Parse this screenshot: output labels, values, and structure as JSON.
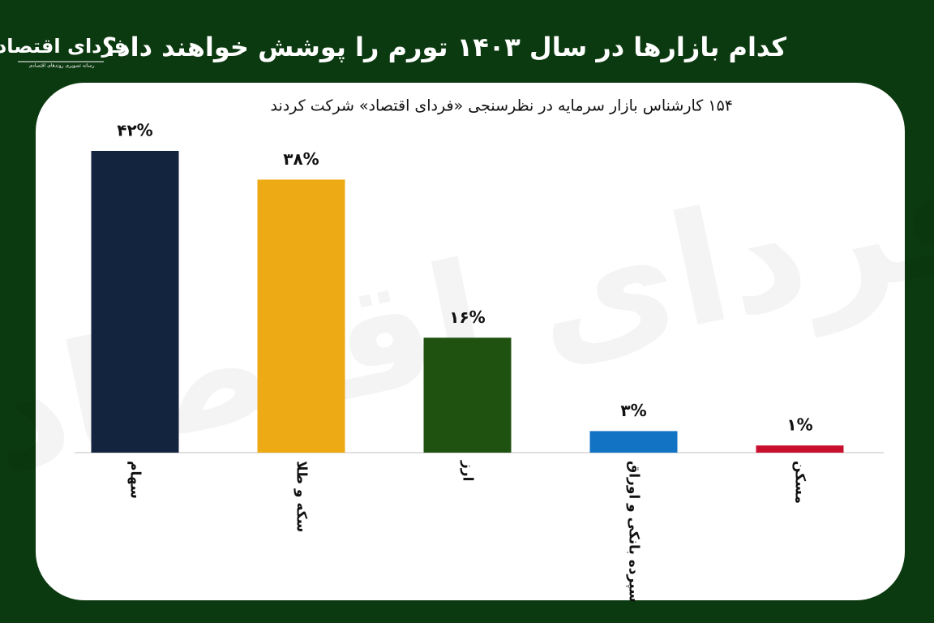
{
  "logo": {
    "name": "فردای اقتصاد",
    "tagline": "رسانه تصویری روندهای اقتصادی"
  },
  "chart_data": {
    "type": "bar",
    "title": "کدام بازارها در سال ۱۴۰۳ تورم را پوشش خواهند داد؟",
    "subtitle": "۱۵۴ کارشناس بازار سرمایه در نظرسنجی «فردای اقتصاد» شرکت کردند",
    "categories": [
      "سهام",
      "سکه و طلا",
      "ارز",
      "سپرده بانکی و اوراق",
      "مسکن"
    ],
    "values": [
      42,
      38,
      16,
      3,
      1
    ],
    "value_labels": [
      "۴۲%",
      "۳۸%",
      "۱۶%",
      "۳%",
      "۱%"
    ],
    "colors": [
      "#13243f",
      "#eeaa14",
      "#1f5211",
      "#1272c4",
      "#c8102e"
    ]
  }
}
